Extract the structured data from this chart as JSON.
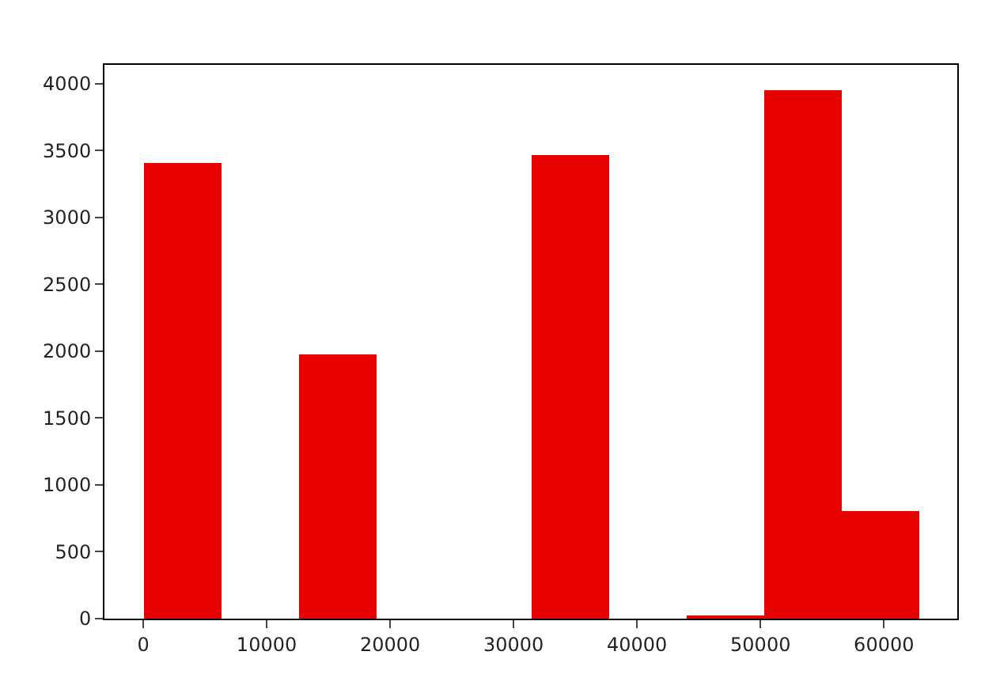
{
  "chart_data": {
    "type": "histogram",
    "bins": [
      0,
      6280,
      12560,
      18840,
      25120,
      31400,
      37680,
      43960,
      50240,
      56520,
      62800
    ],
    "values": [
      3410,
      0,
      1980,
      0,
      0,
      3470,
      0,
      20,
      3950,
      810
    ],
    "color": "#e60000",
    "xlim": [
      -3140,
      65940
    ],
    "xticks": [
      0,
      10000,
      20000,
      30000,
      40000,
      50000,
      60000
    ],
    "ylim": [
      0,
      4140
    ],
    "yticks": [
      0,
      500,
      1000,
      1500,
      2000,
      2500,
      3000,
      3500,
      4000
    ]
  }
}
